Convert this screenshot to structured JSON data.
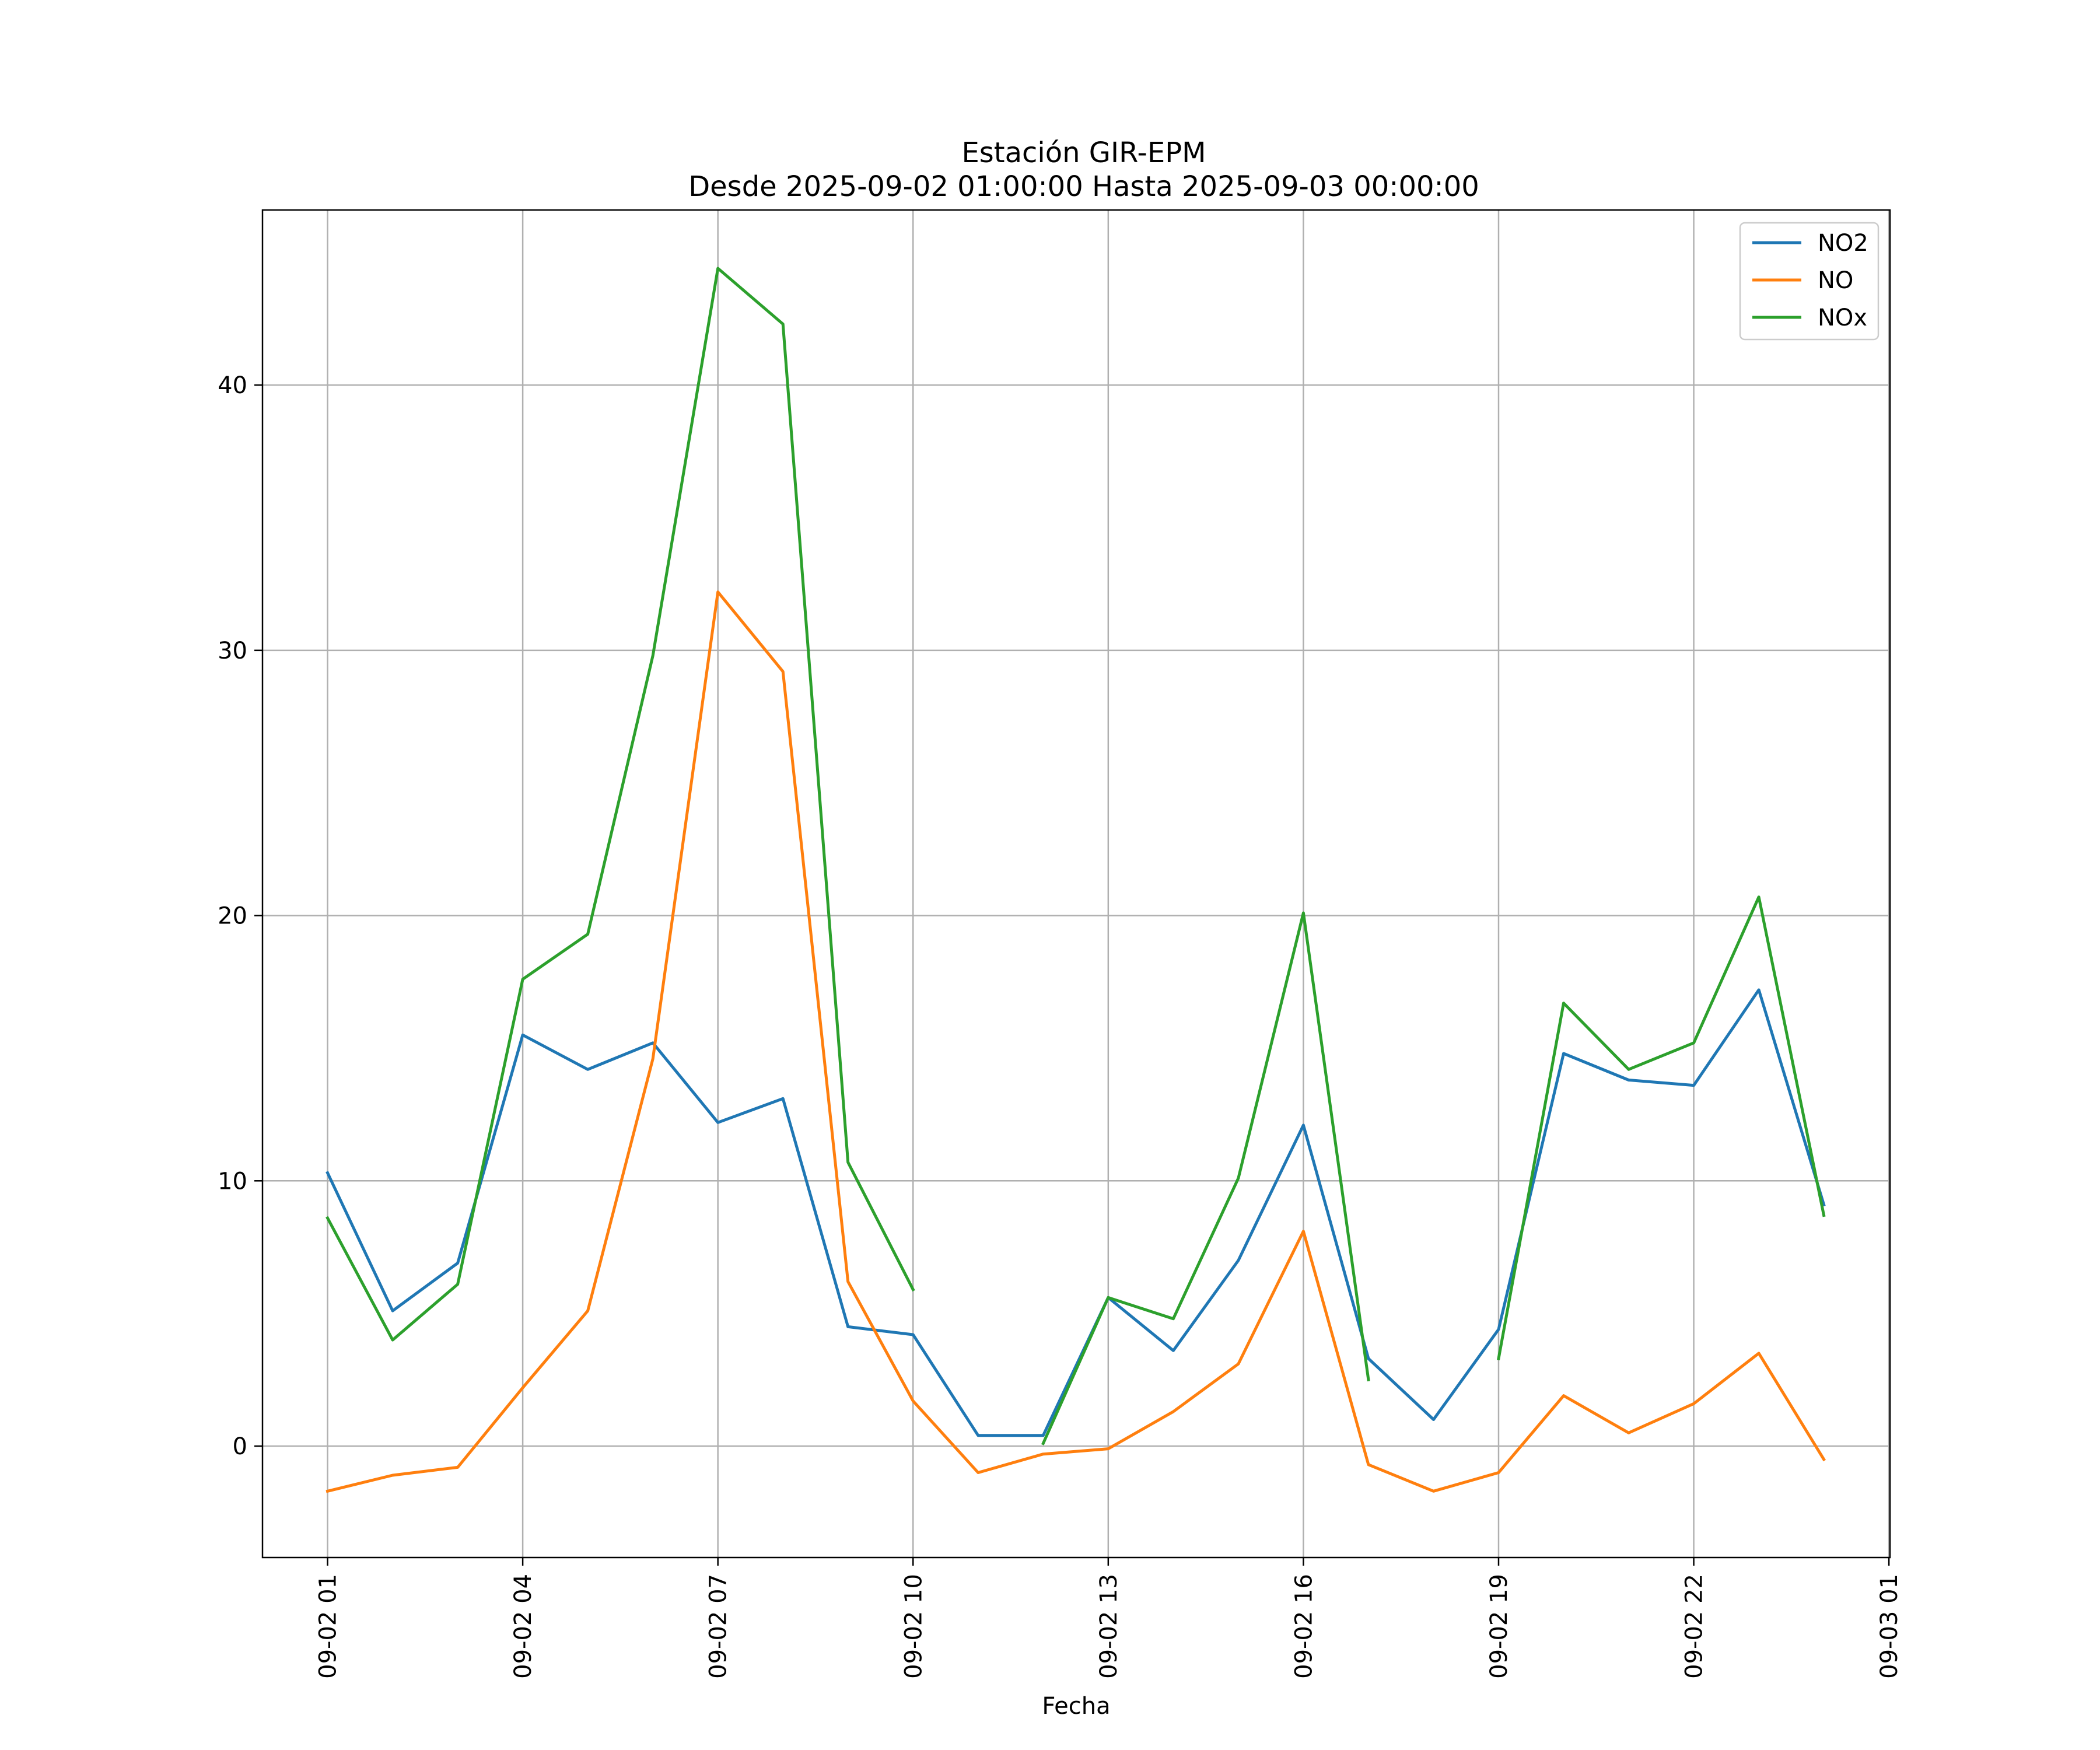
{
  "chart_data": {
    "type": "line",
    "title": "Estación GIR-EPM",
    "subtitle": "Desde 2025-09-02 01:00:00 Hasta 2025-09-03 00:00:00",
    "xlabel": "Fecha",
    "ylabel": "",
    "x_type": "datetime",
    "xlim": [
      "2025-09-02 00:00",
      "2025-09-03 01:01"
    ],
    "ylim": [
      -4.2,
      46.6
    ],
    "grid": true,
    "legend_position": "top-right",
    "x_ticks": [
      {
        "value": "2025-09-02 01:00",
        "label": "09-02 01"
      },
      {
        "value": "2025-09-02 04:00",
        "label": "09-02 04"
      },
      {
        "value": "2025-09-02 07:00",
        "label": "09-02 07"
      },
      {
        "value": "2025-09-02 10:00",
        "label": "09-02 10"
      },
      {
        "value": "2025-09-02 13:00",
        "label": "09-02 13"
      },
      {
        "value": "2025-09-02 16:00",
        "label": "09-02 16"
      },
      {
        "value": "2025-09-02 19:00",
        "label": "09-02 19"
      },
      {
        "value": "2025-09-02 22:00",
        "label": "09-02 22"
      },
      {
        "value": "2025-09-03 01:00",
        "label": "09-03 01"
      }
    ],
    "y_ticks": [
      0,
      10,
      20,
      30,
      40
    ],
    "x": [
      "2025-09-02 01:00",
      "2025-09-02 02:00",
      "2025-09-02 03:00",
      "2025-09-02 04:00",
      "2025-09-02 05:00",
      "2025-09-02 06:00",
      "2025-09-02 07:00",
      "2025-09-02 08:00",
      "2025-09-02 09:00",
      "2025-09-02 10:00",
      "2025-09-02 11:00",
      "2025-09-02 12:00",
      "2025-09-02 13:00",
      "2025-09-02 14:00",
      "2025-09-02 15:00",
      "2025-09-02 16:00",
      "2025-09-02 17:00",
      "2025-09-02 18:00",
      "2025-09-02 19:00",
      "2025-09-02 20:00",
      "2025-09-02 21:00",
      "2025-09-02 22:00",
      "2025-09-02 23:00",
      "2025-09-03 00:00"
    ],
    "series": [
      {
        "name": "NO2",
        "color": "#1f77b4",
        "values": [
          10.3,
          5.1,
          6.9,
          15.5,
          14.2,
          15.2,
          12.2,
          13.1,
          4.5,
          4.2,
          0.4,
          0.4,
          5.6,
          3.6,
          7.0,
          12.1,
          3.3,
          1.0,
          4.4,
          14.8,
          13.8,
          13.6,
          17.2,
          9.1
        ]
      },
      {
        "name": "NO",
        "color": "#ff7f0e",
        "values": [
          -1.7,
          -1.1,
          -0.8,
          2.2,
          5.1,
          14.6,
          32.2,
          29.2,
          6.2,
          1.7,
          -1.0,
          -0.3,
          -0.1,
          1.3,
          3.1,
          8.1,
          -0.7,
          -1.7,
          -1.0,
          1.9,
          0.5,
          1.6,
          3.5,
          -0.5
        ]
      },
      {
        "name": "NOx",
        "color": "#2ca02c",
        "values": [
          8.6,
          4.0,
          6.1,
          17.6,
          19.3,
          29.8,
          44.4,
          42.3,
          10.7,
          5.9,
          null,
          0.1,
          5.6,
          4.8,
          10.1,
          20.1,
          2.5,
          null,
          3.3,
          16.7,
          14.2,
          15.2,
          20.7,
          8.7
        ]
      }
    ]
  }
}
